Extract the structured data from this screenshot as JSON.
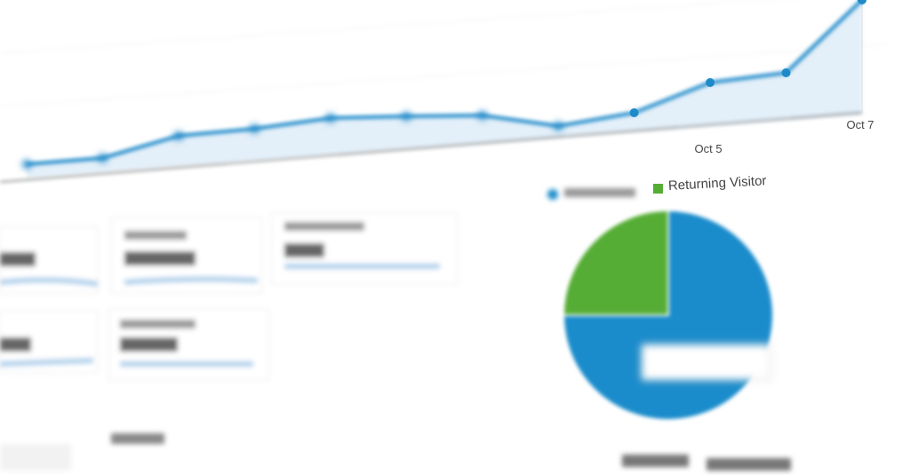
{
  "chart_data": [
    {
      "type": "line",
      "categories": [
        null,
        null,
        null,
        null,
        null,
        null,
        null,
        null,
        null,
        "Oct 5",
        null,
        "Oct 7"
      ],
      "values": [
        5,
        12,
        37,
        45,
        57,
        59,
        60,
        48,
        63,
        97,
        108,
        190
      ],
      "color": "#1f8ac9",
      "ylim": [
        0,
        190
      ]
    },
    {
      "type": "pie",
      "categories": [
        null,
        "Returning Visitor"
      ],
      "values": [
        75,
        25
      ],
      "colors": [
        "#1b8ccb",
        "#55ad35"
      ]
    }
  ]
}
